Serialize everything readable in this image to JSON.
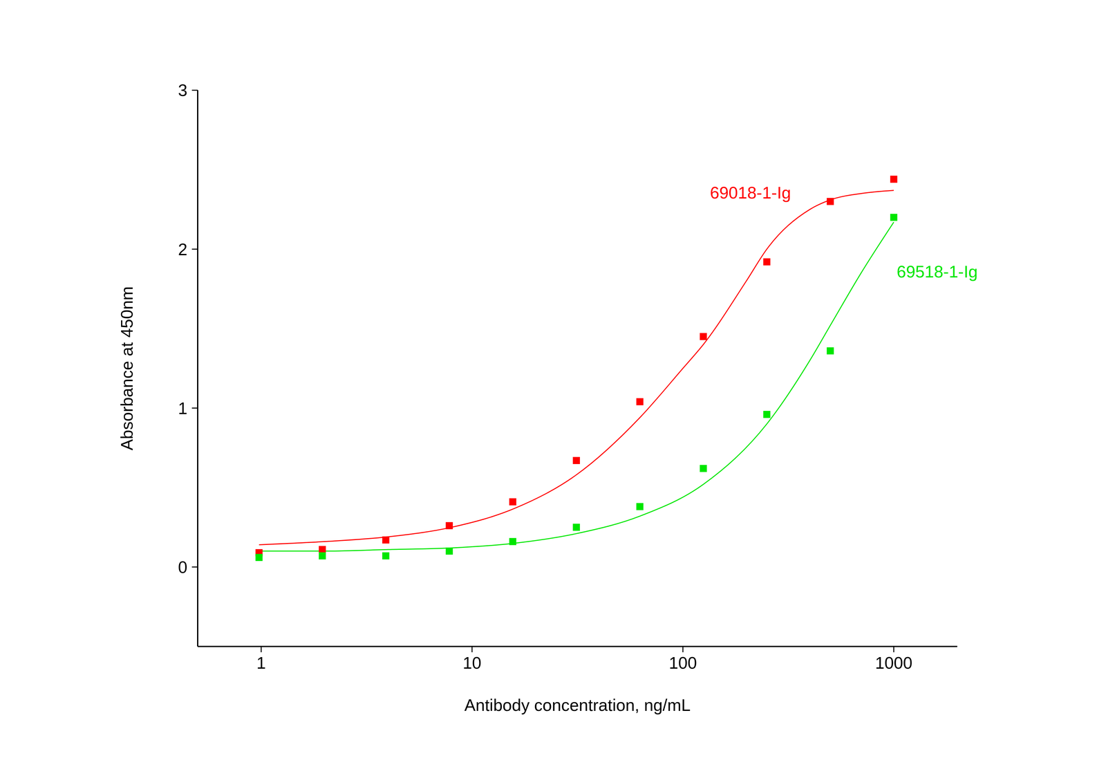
{
  "chart_data": {
    "type": "scatter",
    "xlabel": "Antibody concentration, ng/mL",
    "ylabel": "Absorbance at 450nm",
    "log": "x",
    "xlim": [
      0.5,
      2000
    ],
    "xticks": [
      1,
      10,
      100,
      1000
    ],
    "ylim": [
      -0.5,
      3
    ],
    "yticks": [
      0,
      1,
      2,
      3
    ],
    "grid": false,
    "marker": "square",
    "series": [
      {
        "name": "69018-1-Ig",
        "color": "#ff0000",
        "x": [
          0.977,
          1.95,
          3.9,
          7.8,
          15.6,
          31.25,
          62.5,
          125,
          250,
          500,
          1000
        ],
        "values": [
          0.09,
          0.11,
          0.17,
          0.26,
          0.41,
          0.67,
          1.04,
          1.45,
          1.92,
          2.3,
          2.44
        ],
        "fit": {
          "x": [
            0.977,
            2,
            4,
            8,
            16,
            31.25,
            62.5,
            100,
            125,
            200,
            250,
            400,
            500,
            700,
            1000
          ],
          "values": [
            0.14,
            0.16,
            0.19,
            0.25,
            0.37,
            0.58,
            0.94,
            1.25,
            1.4,
            1.8,
            2.0,
            2.25,
            2.31,
            2.35,
            2.37
          ]
        }
      },
      {
        "name": "69518-1-Ig",
        "color": "#00e600",
        "x": [
          0.977,
          1.95,
          3.9,
          7.8,
          15.6,
          31.25,
          62.5,
          125,
          250,
          500,
          1000
        ],
        "values": [
          0.06,
          0.07,
          0.07,
          0.1,
          0.16,
          0.25,
          0.38,
          0.62,
          0.96,
          1.36,
          2.2
        ],
        "fit": {
          "x": [
            0.977,
            2,
            4,
            8,
            16,
            31.25,
            62.5,
            125,
            250,
            400,
            500,
            700,
            1000
          ],
          "values": [
            0.1,
            0.1,
            0.11,
            0.12,
            0.15,
            0.21,
            0.32,
            0.52,
            0.9,
            1.3,
            1.52,
            1.85,
            2.17
          ]
        }
      }
    ]
  }
}
